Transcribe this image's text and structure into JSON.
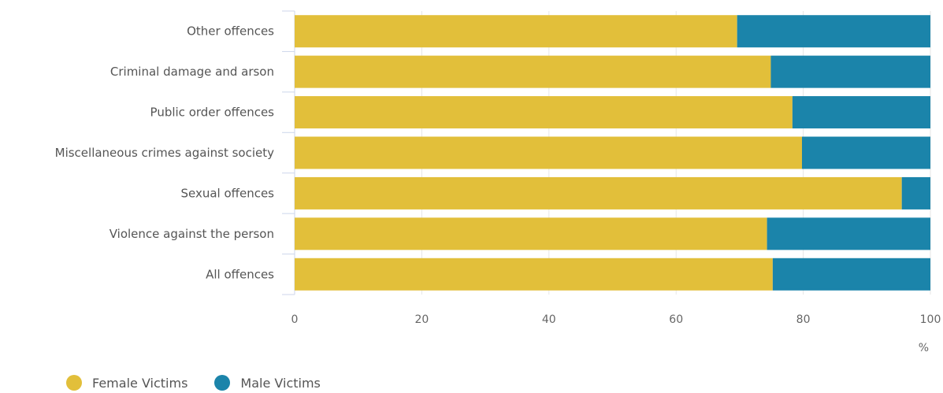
{
  "chart_data": {
    "type": "bar",
    "orientation": "horizontal",
    "stacked": true,
    "categories": [
      "Other offences",
      "Criminal damage and arson",
      "Public order offences",
      "Miscellaneous crimes against society",
      "Sexual offences",
      "Violence against the person",
      "All offences"
    ],
    "series": [
      {
        "name": "Female Victims",
        "color": "#e2bf3a",
        "values": [
          69.6,
          74.9,
          78.3,
          79.8,
          95.5,
          74.3,
          75.2
        ]
      },
      {
        "name": "Male Victims",
        "color": "#1b84aa",
        "values": [
          30.4,
          25.1,
          21.7,
          20.2,
          4.5,
          25.7,
          24.8
        ]
      }
    ],
    "xlim": [
      0,
      100
    ],
    "xticks": [
      "0",
      "20",
      "40",
      "60",
      "80",
      "100"
    ],
    "xunit": "%",
    "grid": true,
    "legend_position": "bottom-left"
  }
}
